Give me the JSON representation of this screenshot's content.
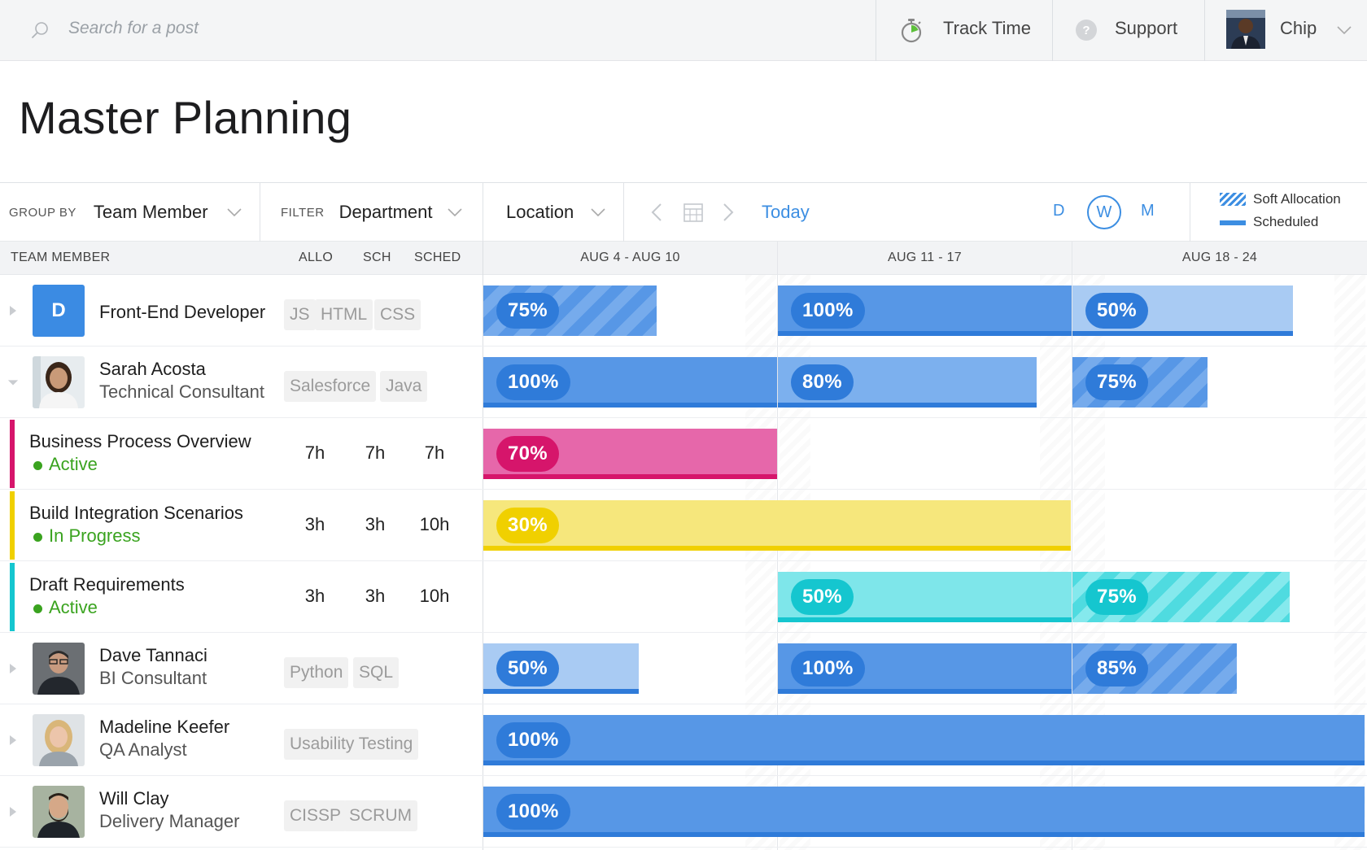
{
  "topbar": {
    "search_placeholder": "Search for a post",
    "track_time": "Track Time",
    "support": "Support",
    "user_name": "Chip"
  },
  "page": {
    "title": "Master Planning"
  },
  "controls": {
    "group_by_label": "GROUP BY",
    "group_by_value": "Team Member",
    "filter_label": "FILTER",
    "filter_value": "Department",
    "location_value": "Location",
    "today": "Today",
    "views": [
      "D",
      "W",
      "M"
    ],
    "active_view": "W",
    "legend": {
      "soft": "Soft Allocation",
      "scheduled": "Scheduled"
    }
  },
  "table_header": {
    "team_member": "TEAM MEMBER",
    "allo": "ALLO",
    "sch": "SCH",
    "sched": "SCHED",
    "weeks": [
      "AUG 4 - AUG 10",
      "AUG 11 - 17",
      "AUG 18 - 24"
    ]
  },
  "rows": [
    {
      "type": "role",
      "initial": "D",
      "name": "Front-End Developer",
      "tags": [
        "JS",
        "HTML",
        "CSS"
      ],
      "bars": [
        {
          "week": 0,
          "pct": "75%",
          "fill": 0.59,
          "style": "soft-dark"
        },
        {
          "week": 1,
          "pct": "100%",
          "fill": 1.0,
          "style": "solid"
        },
        {
          "week": 2,
          "pct": "50%",
          "fill": 0.75,
          "style": "light"
        }
      ]
    },
    {
      "type": "person",
      "name": "Sarah Acosta",
      "title": "Technical Consultant",
      "tags": [
        "Salesforce",
        "Java"
      ],
      "expanded": true,
      "bars": [
        {
          "week": 0,
          "pct": "100%",
          "fill": 1.0,
          "style": "solid"
        },
        {
          "week": 1,
          "pct": "80%",
          "fill": 0.88,
          "style": "medium"
        },
        {
          "week": 2,
          "pct": "75%",
          "fill": 0.46,
          "style": "soft-dark"
        }
      ]
    },
    {
      "type": "task",
      "name": "Business Process Overview",
      "status": "Active",
      "color": "#d6156b",
      "allo": "7h",
      "sch": "7h",
      "sched": "7h",
      "bars": [
        {
          "week": 0,
          "pct": "70%",
          "fill": 1.0,
          "style": "pink"
        }
      ]
    },
    {
      "type": "task",
      "name": "Build Integration Scenarios",
      "status": "In Progress",
      "color": "#f0d000",
      "allo": "3h",
      "sch": "3h",
      "sched": "10h",
      "bars": [
        {
          "week": 0,
          "pct": "30%",
          "fill": 2.0,
          "style": "yellow"
        }
      ]
    },
    {
      "type": "task",
      "name": "Draft Requirements",
      "status": "Active",
      "color": "#15c6cf",
      "allo": "3h",
      "sch": "3h",
      "sched": "10h",
      "bars": [
        {
          "week": 1,
          "pct": "50%",
          "fill": 1.0,
          "style": "cyan"
        },
        {
          "week": 2,
          "pct": "75%",
          "fill": 0.74,
          "style": "cyan-soft"
        }
      ]
    },
    {
      "type": "person",
      "name": "Dave Tannaci",
      "title": "BI Consultant",
      "tags": [
        "Python",
        "SQL"
      ],
      "bars": [
        {
          "week": 0,
          "pct": "50%",
          "fill": 0.53,
          "style": "light"
        },
        {
          "week": 1,
          "pct": "100%",
          "fill": 1.0,
          "style": "solid"
        },
        {
          "week": 2,
          "pct": "85%",
          "fill": 0.56,
          "style": "soft-dark"
        }
      ]
    },
    {
      "type": "person",
      "name": "Madeline Keefer",
      "title": "QA Analyst",
      "tags": [
        "Usability Testing"
      ],
      "bars": [
        {
          "week": 0,
          "pct": "100%",
          "fill": 3.0,
          "style": "solid"
        }
      ]
    },
    {
      "type": "person",
      "name": "Will Clay",
      "title": "Delivery Manager",
      "tags": [
        "CISSP",
        "SCRUM"
      ],
      "bars": [
        {
          "week": 0,
          "pct": "100%",
          "fill": 3.0,
          "style": "solid"
        }
      ]
    }
  ]
}
